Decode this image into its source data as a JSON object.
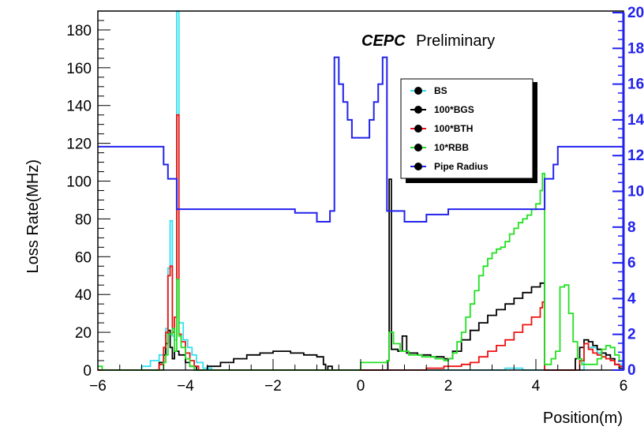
{
  "chart_data": {
    "type": "line",
    "annotation": {
      "bold": "CEPC",
      "rest": "Preliminary"
    },
    "xlabel": "Position(m)",
    "ylabel": "Loss Rate(MHz)",
    "xlim": [
      -6,
      6
    ],
    "ylim": [
      0,
      190
    ],
    "y2lim": [
      0,
      20
    ],
    "x_ticks": [
      "−6",
      "−4",
      "−2",
      "0",
      "2",
      "4",
      "6"
    ],
    "x_tick_values": [
      -6,
      -4,
      -2,
      0,
      2,
      4,
      6
    ],
    "y_ticks": [
      "0",
      "20",
      "40",
      "60",
      "80",
      "100",
      "120",
      "140",
      "160",
      "180"
    ],
    "y_tick_values": [
      0,
      20,
      40,
      60,
      80,
      100,
      120,
      140,
      160,
      180
    ],
    "y2_ticks": [
      "0",
      "2",
      "4",
      "6",
      "8",
      "10",
      "12",
      "14",
      "16",
      "18",
      "20"
    ],
    "y2_tick_values": [
      0,
      2,
      4,
      6,
      8,
      10,
      12,
      14,
      16,
      18,
      20
    ],
    "grid": false,
    "legend_position": "top-right",
    "series": [
      {
        "name": "BS",
        "color": "#33e0f0",
        "axis": "left",
        "step": true,
        "points": [
          [
            -6,
            0
          ],
          [
            -5.2,
            0
          ],
          [
            -5.0,
            2
          ],
          [
            -4.8,
            5
          ],
          [
            -4.6,
            8
          ],
          [
            -4.5,
            12
          ],
          [
            -4.45,
            22
          ],
          [
            -4.4,
            54
          ],
          [
            -4.35,
            79
          ],
          [
            -4.3,
            18
          ],
          [
            -4.25,
            16
          ],
          [
            -4.2,
            190
          ],
          [
            -4.15,
            25
          ],
          [
            -4.05,
            16
          ],
          [
            -3.95,
            12
          ],
          [
            -3.85,
            8
          ],
          [
            -3.75,
            4
          ],
          [
            -3.6,
            1
          ],
          [
            -3.4,
            0
          ],
          [
            3.2,
            0
          ],
          [
            3.3,
            1
          ],
          [
            3.5,
            1
          ],
          [
            3.7,
            0
          ],
          [
            5.0,
            0
          ],
          [
            5.1,
            14
          ],
          [
            5.2,
            12
          ],
          [
            5.4,
            9
          ],
          [
            5.6,
            6
          ],
          [
            5.8,
            3
          ],
          [
            6,
            0
          ]
        ]
      },
      {
        "name": "100*BGS",
        "color": "#000000",
        "axis": "left",
        "step": true,
        "points": [
          [
            -6,
            0
          ],
          [
            -4.8,
            0
          ],
          [
            -4.6,
            4
          ],
          [
            -4.5,
            8
          ],
          [
            -4.45,
            14
          ],
          [
            -4.4,
            21
          ],
          [
            -4.35,
            12
          ],
          [
            -4.3,
            6
          ],
          [
            -4.25,
            10
          ],
          [
            -4.2,
            10
          ],
          [
            -4.15,
            8
          ],
          [
            -4.0,
            4
          ],
          [
            -3.9,
            2
          ],
          [
            -3.75,
            0
          ],
          [
            -3.5,
            2
          ],
          [
            -3.2,
            4
          ],
          [
            -2.9,
            6
          ],
          [
            -2.6,
            8
          ],
          [
            -2.3,
            9
          ],
          [
            -2.0,
            10
          ],
          [
            -1.6,
            9
          ],
          [
            -1.3,
            8
          ],
          [
            -1.0,
            7
          ],
          [
            -0.85,
            3
          ],
          [
            -0.8,
            0
          ],
          [
            -0.75,
            2
          ],
          [
            -0.65,
            0
          ],
          [
            0.6,
            0
          ],
          [
            0.62,
            5
          ],
          [
            0.65,
            101
          ],
          [
            0.7,
            11
          ],
          [
            0.85,
            10
          ],
          [
            0.95,
            18
          ],
          [
            1.05,
            9
          ],
          [
            1.3,
            8
          ],
          [
            1.6,
            7
          ],
          [
            1.9,
            6
          ],
          [
            2.1,
            10
          ],
          [
            2.3,
            16
          ],
          [
            2.5,
            21
          ],
          [
            2.7,
            25
          ],
          [
            2.9,
            29
          ],
          [
            3.1,
            32
          ],
          [
            3.3,
            35
          ],
          [
            3.5,
            38
          ],
          [
            3.7,
            41
          ],
          [
            3.9,
            44
          ],
          [
            4.1,
            46
          ],
          [
            4.2,
            0
          ],
          [
            4.8,
            0
          ],
          [
            4.9,
            6
          ],
          [
            5.0,
            12
          ],
          [
            5.1,
            16
          ],
          [
            5.2,
            15
          ],
          [
            5.3,
            13
          ],
          [
            5.4,
            11
          ],
          [
            5.5,
            9
          ],
          [
            5.6,
            8
          ],
          [
            5.7,
            6
          ],
          [
            5.8,
            3
          ],
          [
            5.9,
            1
          ],
          [
            6,
            0
          ]
        ]
      },
      {
        "name": "100*BTH",
        "color": "#ee1111",
        "axis": "left",
        "step": true,
        "points": [
          [
            -6,
            0
          ],
          [
            -4.7,
            0
          ],
          [
            -4.6,
            3
          ],
          [
            -4.5,
            12
          ],
          [
            -4.45,
            20
          ],
          [
            -4.4,
            50
          ],
          [
            -4.35,
            55
          ],
          [
            -4.3,
            20
          ],
          [
            -4.25,
            28
          ],
          [
            -4.2,
            135
          ],
          [
            -4.15,
            19
          ],
          [
            -4.1,
            15
          ],
          [
            -4.0,
            9
          ],
          [
            -3.9,
            5
          ],
          [
            -3.8,
            2
          ],
          [
            -3.7,
            0
          ],
          [
            1.3,
            0
          ],
          [
            1.5,
            1
          ],
          [
            1.7,
            1
          ],
          [
            1.9,
            2
          ],
          [
            2.1,
            2
          ],
          [
            2.3,
            3
          ],
          [
            2.5,
            4
          ],
          [
            2.7,
            7
          ],
          [
            2.9,
            10
          ],
          [
            3.1,
            13
          ],
          [
            3.3,
            16
          ],
          [
            3.5,
            20
          ],
          [
            3.7,
            24
          ],
          [
            3.9,
            28
          ],
          [
            4.1,
            33
          ],
          [
            4.15,
            36
          ],
          [
            4.2,
            0
          ],
          [
            4.9,
            0
          ],
          [
            5.0,
            5
          ],
          [
            5.1,
            14
          ],
          [
            5.2,
            11
          ],
          [
            5.3,
            9
          ],
          [
            5.4,
            8
          ],
          [
            5.5,
            7
          ],
          [
            5.6,
            6
          ],
          [
            5.7,
            5
          ],
          [
            5.8,
            3
          ],
          [
            5.9,
            2
          ],
          [
            6,
            0
          ]
        ]
      },
      {
        "name": "10*RBB",
        "color": "#22e022",
        "axis": "left",
        "step": true,
        "points": [
          [
            -6,
            2
          ],
          [
            -5.9,
            0
          ],
          [
            -4.6,
            0
          ],
          [
            -4.5,
            4
          ],
          [
            -4.45,
            8
          ],
          [
            -4.4,
            19
          ],
          [
            -4.35,
            19
          ],
          [
            -4.3,
            22
          ],
          [
            -4.25,
            10
          ],
          [
            -4.2,
            48
          ],
          [
            -4.15,
            18
          ],
          [
            -4.1,
            12
          ],
          [
            -4.0,
            6
          ],
          [
            -3.9,
            2
          ],
          [
            -3.8,
            0
          ],
          [
            -0.1,
            0
          ],
          [
            0,
            4
          ],
          [
            0.3,
            4
          ],
          [
            0.6,
            5
          ],
          [
            0.65,
            20
          ],
          [
            0.75,
            14
          ],
          [
            0.9,
            10
          ],
          [
            1.1,
            8
          ],
          [
            1.4,
            7
          ],
          [
            1.7,
            6
          ],
          [
            1.9,
            5
          ],
          [
            2.0,
            6
          ],
          [
            2.1,
            9
          ],
          [
            2.2,
            15
          ],
          [
            2.3,
            20
          ],
          [
            2.4,
            28
          ],
          [
            2.5,
            35
          ],
          [
            2.6,
            42
          ],
          [
            2.7,
            50
          ],
          [
            2.8,
            55
          ],
          [
            2.9,
            59
          ],
          [
            3.0,
            62
          ],
          [
            3.1,
            64
          ],
          [
            3.2,
            65
          ],
          [
            3.3,
            68
          ],
          [
            3.4,
            72
          ],
          [
            3.5,
            75
          ],
          [
            3.6,
            78
          ],
          [
            3.7,
            80
          ],
          [
            3.8,
            82
          ],
          [
            3.9,
            85
          ],
          [
            4.0,
            88
          ],
          [
            4.1,
            95
          ],
          [
            4.15,
            104
          ],
          [
            4.2,
            3
          ],
          [
            4.35,
            6
          ],
          [
            4.45,
            10
          ],
          [
            4.55,
            44
          ],
          [
            4.65,
            45
          ],
          [
            4.75,
            30
          ],
          [
            4.85,
            15
          ],
          [
            4.95,
            6
          ],
          [
            5.05,
            3
          ],
          [
            5.2,
            3
          ],
          [
            5.4,
            6
          ],
          [
            5.5,
            11
          ],
          [
            5.6,
            13
          ],
          [
            5.7,
            12
          ],
          [
            5.8,
            8
          ],
          [
            5.9,
            5
          ],
          [
            6,
            0
          ]
        ]
      },
      {
        "name": "Pipe Radius",
        "color": "#2222ee",
        "axis": "right",
        "step": true,
        "points": [
          [
            -6,
            12.5
          ],
          [
            -4.5,
            12.5
          ],
          [
            -4.5,
            11.5
          ],
          [
            -4.4,
            11.5
          ],
          [
            -4.4,
            10.7
          ],
          [
            -4.2,
            10.7
          ],
          [
            -4.2,
            9
          ],
          [
            -2.0,
            9
          ],
          [
            -1.5,
            8.8
          ],
          [
            -1.0,
            8.3
          ],
          [
            -0.7,
            8.9
          ],
          [
            -0.6,
            8.9
          ],
          [
            -0.6,
            17.5
          ],
          [
            -0.5,
            17.5
          ],
          [
            -0.5,
            16
          ],
          [
            -0.4,
            16
          ],
          [
            -0.4,
            15
          ],
          [
            -0.3,
            15
          ],
          [
            -0.3,
            14
          ],
          [
            -0.2,
            14
          ],
          [
            -0.2,
            13
          ],
          [
            0.2,
            13
          ],
          [
            0.2,
            14
          ],
          [
            0.3,
            14
          ],
          [
            0.3,
            15
          ],
          [
            0.4,
            15
          ],
          [
            0.4,
            16
          ],
          [
            0.5,
            16
          ],
          [
            0.5,
            17.5
          ],
          [
            0.6,
            17.5
          ],
          [
            0.6,
            8.9
          ],
          [
            0.7,
            8.9
          ],
          [
            1.0,
            8.3
          ],
          [
            1.5,
            8.7
          ],
          [
            2.0,
            9
          ],
          [
            4.2,
            9
          ],
          [
            4.2,
            10.7
          ],
          [
            4.4,
            10.7
          ],
          [
            4.4,
            11.5
          ],
          [
            4.5,
            11.5
          ],
          [
            4.5,
            12.5
          ],
          [
            6,
            12.5
          ]
        ]
      }
    ]
  }
}
